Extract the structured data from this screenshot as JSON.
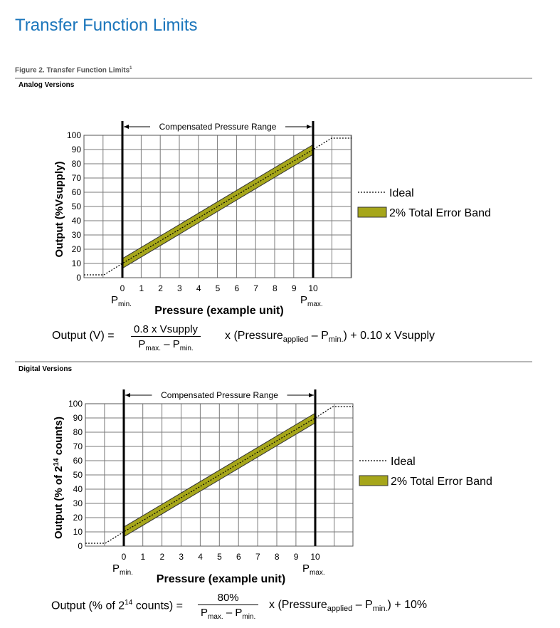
{
  "page": {
    "title": "Transfer Function Limits",
    "figure_caption": "Figure 2. Transfer Function Limits",
    "figure_caption_note": "1"
  },
  "colors": {
    "title": "#1a75bb",
    "band": "#a6a61a",
    "rule": "#b7b7b7"
  },
  "analog": {
    "section_label": "Analog Versions",
    "formula": {
      "lhs": "Output (V) =",
      "numerator": "0.8 x Vsupply",
      "denominator_a": "P",
      "denominator_a_sub": "max.",
      "denominator_mid": " – P",
      "denominator_b_sub": "min.",
      "rhs_a": "x (Pressure",
      "rhs_a_sub": "applied",
      "rhs_b": " – P",
      "rhs_b_sub": "min.",
      "rhs_c": ") + 0.10 x Vsupply"
    }
  },
  "digital": {
    "section_label": "Digital Versions",
    "formula": {
      "lhs_a": "Output (% of 2",
      "lhs_sup": "14",
      "lhs_b": " counts) =",
      "numerator": "80%",
      "denominator_a": "P",
      "denominator_a_sub": "max.",
      "denominator_mid": " – P",
      "denominator_b_sub": "min.",
      "rhs_a": "x (Pressure",
      "rhs_a_sub": "applied",
      "rhs_b": " – P",
      "rhs_b_sub": "min.",
      "rhs_c": ") + 10%"
    }
  },
  "chart_data": [
    {
      "type": "line",
      "ylabel": "Output (%Vsupply)",
      "xlabel": "Pressure (example unit)",
      "x_ticks": [
        "0",
        "1",
        "2",
        "3",
        "4",
        "5",
        "6",
        "7",
        "8",
        "9",
        "10"
      ],
      "y_ticks": [
        "0",
        "10",
        "20",
        "30",
        "40",
        "50",
        "60",
        "70",
        "80",
        "90",
        "100"
      ],
      "ylim": [
        0,
        100
      ],
      "pmin_label": "P",
      "pmin_sub": "min.",
      "pmax_label": "P",
      "pmax_sub": "max.",
      "range_label": "Compensated Pressure Range",
      "grid": true,
      "legend_position": "right",
      "series": [
        {
          "name": "Ideal",
          "style": "dotted",
          "x": [
            "<0",
            0,
            10,
            ">10"
          ],
          "y": [
            2,
            10,
            90,
            98
          ]
        },
        {
          "name": "2% Total Error Band",
          "style": "band",
          "x": [
            0,
            10
          ],
          "y_low": [
            6.6,
            86.6
          ],
          "y_high": [
            13.4,
            93.4
          ]
        }
      ]
    },
    {
      "type": "line",
      "ylabel_a": "Output (% of 2",
      "ylabel_sup": "14",
      "ylabel_b": " counts)",
      "xlabel": "Pressure (example unit)",
      "x_ticks": [
        "0",
        "1",
        "2",
        "3",
        "4",
        "5",
        "6",
        "7",
        "8",
        "9",
        "10"
      ],
      "y_ticks": [
        "0",
        "10",
        "20",
        "30",
        "40",
        "50",
        "60",
        "70",
        "80",
        "90",
        "100"
      ],
      "ylim": [
        0,
        100
      ],
      "pmin_label": "P",
      "pmin_sub": "min.",
      "pmax_label": "P",
      "pmax_sub": "max.",
      "range_label": "Compensated Pressure Range",
      "grid": true,
      "legend_position": "right",
      "series": [
        {
          "name": "Ideal",
          "style": "dotted",
          "x": [
            "<0",
            0,
            10,
            ">10"
          ],
          "y": [
            2,
            10,
            90,
            98
          ]
        },
        {
          "name": "2% Total Error Band",
          "style": "band",
          "x": [
            0,
            10
          ],
          "y_low": [
            6.6,
            86.6
          ],
          "y_high": [
            13.4,
            93.4
          ]
        }
      ]
    }
  ]
}
